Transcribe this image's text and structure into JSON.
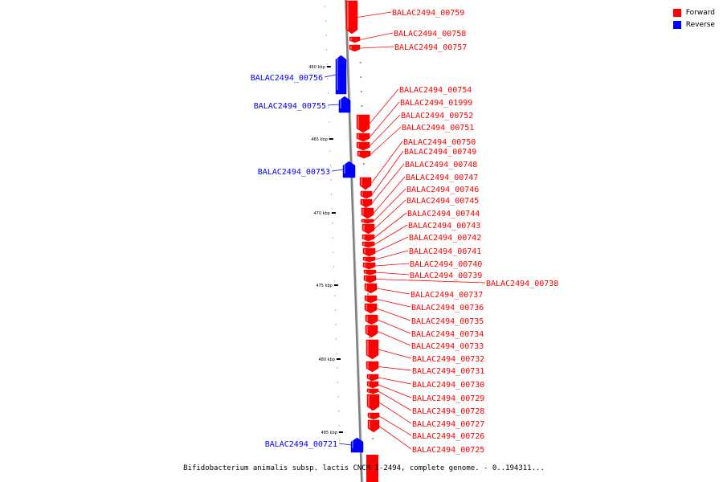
{
  "colors": {
    "forward": "#ff0000",
    "reverse": "#0000ff",
    "axis": "#808080"
  },
  "legend": [
    {
      "label": "Forward",
      "color": "#ff0000"
    },
    {
      "label": "Reverse",
      "color": "#0000ff"
    }
  ],
  "caption": "Bifidobacterium animalis subsp. lactis CNCM I-2494, complete genome. - 0..194311...",
  "kbp_ticks": [
    "460 kbp",
    "465 kbp",
    "470 kbp",
    "475 kbp",
    "480 kbp",
    "485 kbp"
  ],
  "genes": [
    {
      "name": "BALAC2494_00759",
      "strand": "forward"
    },
    {
      "name": "BALAC2494_00758",
      "strand": "forward"
    },
    {
      "name": "BALAC2494_00757",
      "strand": "forward"
    },
    {
      "name": "BALAC2494_00756",
      "strand": "reverse"
    },
    {
      "name": "BALAC2494_00755",
      "strand": "reverse"
    },
    {
      "name": "BALAC2494_00754",
      "strand": "forward"
    },
    {
      "name": "BALAC2494_01999",
      "strand": "forward"
    },
    {
      "name": "BALAC2494_00752",
      "strand": "forward"
    },
    {
      "name": "BALAC2494_00751",
      "strand": "forward"
    },
    {
      "name": "BALAC2494_00753",
      "strand": "reverse"
    },
    {
      "name": "BALAC2494_00750",
      "strand": "forward"
    },
    {
      "name": "BALAC2494_00749",
      "strand": "forward"
    },
    {
      "name": "BALAC2494_00748",
      "strand": "forward"
    },
    {
      "name": "BALAC2494_00747",
      "strand": "forward"
    },
    {
      "name": "BALAC2494_00746",
      "strand": "forward"
    },
    {
      "name": "BALAC2494_00745",
      "strand": "forward"
    },
    {
      "name": "BALAC2494_00744",
      "strand": "forward"
    },
    {
      "name": "BALAC2494_00743",
      "strand": "forward"
    },
    {
      "name": "BALAC2494_00742",
      "strand": "forward"
    },
    {
      "name": "BALAC2494_00741",
      "strand": "forward"
    },
    {
      "name": "BALAC2494_00740",
      "strand": "forward"
    },
    {
      "name": "BALAC2494_00739",
      "strand": "forward"
    },
    {
      "name": "BALAC2494_00738",
      "strand": "forward"
    },
    {
      "name": "BALAC2494_00737",
      "strand": "forward"
    },
    {
      "name": "BALAC2494_00736",
      "strand": "forward"
    },
    {
      "name": "BALAC2494_00735",
      "strand": "forward"
    },
    {
      "name": "BALAC2494_00734",
      "strand": "forward"
    },
    {
      "name": "BALAC2494_00733",
      "strand": "forward"
    },
    {
      "name": "BALAC2494_00732",
      "strand": "forward"
    },
    {
      "name": "BALAC2494_00731",
      "strand": "forward"
    },
    {
      "name": "BALAC2494_00730",
      "strand": "forward"
    },
    {
      "name": "BALAC2494_00729",
      "strand": "forward"
    },
    {
      "name": "BALAC2494_00728",
      "strand": "forward"
    },
    {
      "name": "BALAC2494_00727",
      "strand": "forward"
    },
    {
      "name": "BALAC2494_00726",
      "strand": "forward"
    },
    {
      "name": "BALAC2494_00725",
      "strand": "forward"
    },
    {
      "name": "BALAC2494_00721",
      "strand": "reverse"
    }
  ]
}
